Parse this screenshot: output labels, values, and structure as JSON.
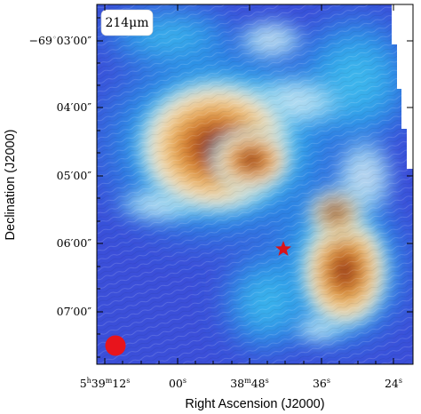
{
  "figure": {
    "band_label": "214μm",
    "colors": {
      "background_field": "#3a4fd8",
      "beam_marker": "#e8141c",
      "star_marker": "#d8131b",
      "band_label_box": "#ffffff"
    }
  },
  "axes": {
    "x_title": "Right Ascension (J2000)",
    "y_title": "Declination (J2000)",
    "x_ticks": [
      {
        "main": "5",
        "sup1": "h",
        "mid": "39",
        "sup2": "m",
        "tail": "12",
        "sup3": "s"
      },
      {
        "main": "00",
        "sup1": "s"
      },
      {
        "main": "38",
        "sup1": "m",
        "mid": "48",
        "sup2": "s"
      },
      {
        "main": "36",
        "sup1": "s"
      },
      {
        "main": "24",
        "sup1": "s"
      }
    ],
    "y_ticks": [
      {
        "main": "−69",
        "sup1": "◦",
        "mid": "03′00″"
      },
      {
        "main": "04′00″"
      },
      {
        "main": "05′00″"
      },
      {
        "main": "06′00″"
      },
      {
        "main": "07′00″"
      }
    ]
  },
  "markers": [
    {
      "kind": "star",
      "name": "star-marker"
    },
    {
      "kind": "beam",
      "name": "beam-circle"
    }
  ]
}
